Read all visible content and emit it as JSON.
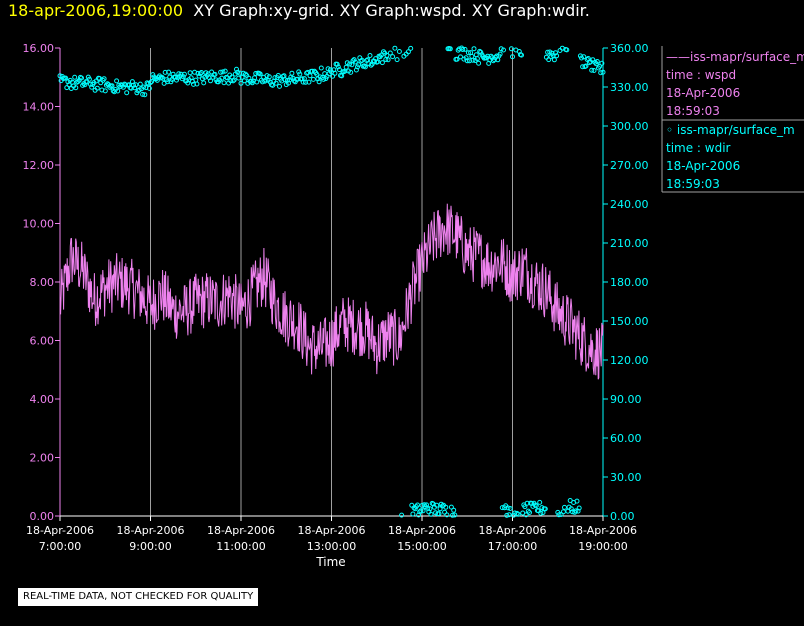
{
  "header": {
    "timestamp": "18-apr-2006,19:00:00",
    "title": "XY Graph:xy-grid.  XY Graph:wspd.  XY Graph:wdir."
  },
  "notice": "REAL-TIME DATA, NOT CHECKED FOR QUALITY",
  "legend": [
    {
      "line1": "——iss-mapr/surface_m",
      "line2": "time : wspd",
      "line3": "18-Apr-2006",
      "line4": "18:59:03"
    },
    {
      "line1": "◦  iss-mapr/surface_m",
      "line2": "time : wdir",
      "line3": "18-Apr-2006",
      "line4": "18:59:03"
    }
  ],
  "colors": {
    "wspd": "#ee82ee",
    "wdir": "#00ffff",
    "axis": "#ffffff",
    "grid": "#a0a0a0",
    "timestamp": "#ffff00"
  },
  "chart_data": {
    "type": "line",
    "xlabel": "Time",
    "xlim": [
      "18-Apr-2006 07:00",
      "18-Apr-2006 19:00"
    ],
    "x_ticks": [
      {
        "date": "18-Apr-2006",
        "time": "7:00:00"
      },
      {
        "date": "18-Apr-2006",
        "time": "9:00:00"
      },
      {
        "date": "18-Apr-2006",
        "time": "11:00:00"
      },
      {
        "date": "18-Apr-2006",
        "time": "13:00:00"
      },
      {
        "date": "18-Apr-2006",
        "time": "15:00:00"
      },
      {
        "date": "18-Apr-2006",
        "time": "17:00:00"
      },
      {
        "date": "18-Apr-2006",
        "time": "19:00:00"
      }
    ],
    "y_left": {
      "range": [
        0,
        16
      ],
      "ticks": [
        "0.00",
        "2.00",
        "4.00",
        "6.00",
        "8.00",
        "10.00",
        "12.00",
        "14.00",
        "16.00"
      ]
    },
    "y_right": {
      "range": [
        0,
        360
      ],
      "ticks": [
        "0.00",
        "30.00",
        "60.00",
        "90.00",
        "120.00",
        "150.00",
        "180.00",
        "210.00",
        "240.00",
        "270.00",
        "300.00",
        "330.00",
        "360.00"
      ]
    },
    "grid": "vertical",
    "series": [
      {
        "name": "wspd",
        "axis": "left",
        "style": "line",
        "x": [
          "07:00",
          "07:15",
          "07:30",
          "07:45",
          "08:00",
          "08:15",
          "08:30",
          "08:45",
          "09:00",
          "09:15",
          "09:30",
          "09:45",
          "10:00",
          "10:15",
          "10:30",
          "10:45",
          "11:00",
          "11:15",
          "11:30",
          "11:45",
          "12:00",
          "12:15",
          "12:30",
          "12:45",
          "13:00",
          "13:15",
          "13:30",
          "13:45",
          "14:00",
          "14:15",
          "14:30",
          "14:45",
          "15:00",
          "15:15",
          "15:30",
          "15:45",
          "16:00",
          "16:15",
          "16:30",
          "16:45",
          "17:00",
          "17:15",
          "17:30",
          "17:45",
          "18:00",
          "18:15",
          "18:30",
          "18:45",
          "19:00"
        ],
        "y": [
          7.2,
          8.8,
          8.4,
          7.4,
          7.8,
          8.0,
          7.9,
          7.6,
          7.2,
          7.6,
          7.0,
          7.0,
          7.3,
          7.4,
          7.3,
          7.6,
          7.0,
          7.6,
          8.2,
          7.3,
          6.8,
          6.6,
          5.8,
          5.7,
          6.0,
          6.6,
          6.5,
          6.4,
          5.8,
          6.2,
          6.0,
          7.5,
          8.6,
          9.4,
          9.9,
          9.6,
          9.0,
          8.9,
          8.6,
          8.7,
          8.2,
          8.5,
          8.0,
          7.7,
          7.0,
          6.6,
          6.1,
          5.7,
          5.6
        ]
      },
      {
        "name": "wdir",
        "axis": "right",
        "style": "scatter",
        "x": [
          "07:00",
          "07:15",
          "07:30",
          "07:45",
          "08:00",
          "08:15",
          "08:30",
          "08:45",
          "09:00",
          "09:15",
          "09:30",
          "09:45",
          "10:00",
          "10:15",
          "10:30",
          "10:45",
          "11:00",
          "11:15",
          "11:30",
          "11:45",
          "12:00",
          "12:15",
          "12:30",
          "12:45",
          "13:00",
          "13:15",
          "13:30",
          "13:45",
          "14:00",
          "14:15",
          "14:45",
          "15:00",
          "15:15",
          "15:30",
          "15:45",
          "16:00",
          "16:15",
          "16:30",
          "16:45",
          "17:00",
          "17:15",
          "17:30",
          "17:45",
          "18:00",
          "18:15",
          "18:30",
          "18:45",
          "19:00"
        ],
        "y": [
          334,
          333,
          333,
          332,
          331,
          330,
          330,
          329,
          336,
          337,
          337,
          337,
          337,
          338,
          338,
          339,
          337,
          336,
          335,
          335,
          336,
          337,
          338,
          340,
          343,
          346,
          348,
          350,
          353,
          356,
          4,
          6,
          5,
          4,
          356,
          355,
          353,
          354,
          3,
          358,
          5,
          6,
          355,
          2,
          7,
          350,
          346,
          344
        ]
      }
    ]
  }
}
